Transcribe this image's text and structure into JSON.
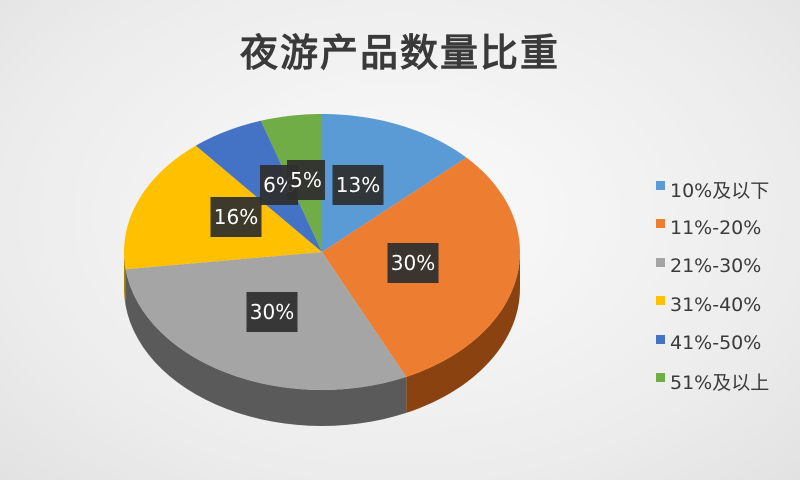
{
  "chart_data": {
    "type": "pie",
    "title": "夜游产品数量比重",
    "categories": [
      "10%及以下",
      "11%-20%",
      "21%-30%",
      "31%-40%",
      "41%-50%",
      "51%及以上"
    ],
    "values": [
      13,
      30,
      30,
      16,
      6,
      5
    ],
    "data_labels": [
      "13%",
      "30%",
      "30%",
      "16%",
      "6%",
      "5%"
    ],
    "colors": [
      "#5b9bd5",
      "#ed7d31",
      "#a5a5a5",
      "#ffc000",
      "#4472c4",
      "#70ad47"
    ],
    "side_colors": [
      "#3d6f9e",
      "#8a4210",
      "#5a5a5a",
      "#a77e00",
      "#2d4d88",
      "#4a7a2f"
    ],
    "style": "3d",
    "legend_position": "right"
  }
}
